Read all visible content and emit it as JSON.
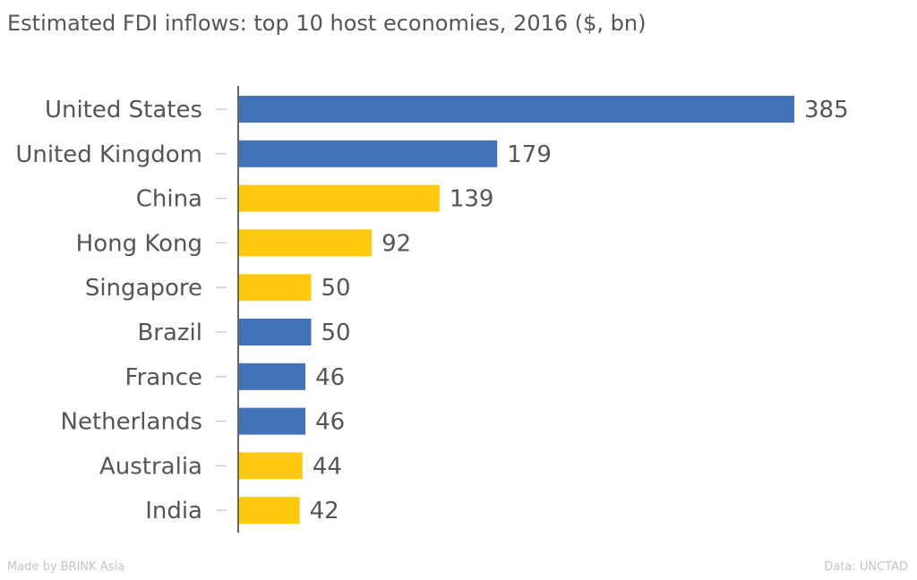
{
  "chart_data": {
    "type": "bar",
    "orientation": "horizontal",
    "title": "Estimated FDI inflows: top 10 host economies, 2016 ($, bn)",
    "categories": [
      "United States",
      "United Kingdom",
      "China",
      "Hong Kong",
      "Singapore",
      "Brazil",
      "France",
      "Netherlands",
      "Australia",
      "India"
    ],
    "values": [
      385,
      179,
      139,
      92,
      50,
      50,
      46,
      46,
      44,
      42
    ],
    "bar_colors": [
      "#4472b8",
      "#4472b8",
      "#ffc90e",
      "#ffc90e",
      "#ffc90e",
      "#4472b8",
      "#4472b8",
      "#4472b8",
      "#ffc90e",
      "#ffc90e"
    ],
    "xlim": [
      0,
      385
    ],
    "grid": false,
    "data_labels": true
  },
  "footer": {
    "made_by": "Made by BRINK Asia",
    "source": "Data: UNCTAD"
  }
}
